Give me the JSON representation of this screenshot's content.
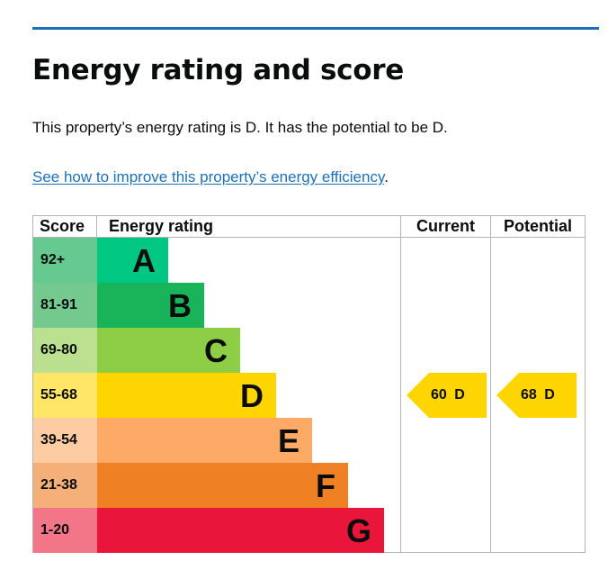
{
  "page": {
    "title": "Energy rating and score",
    "intro": "This property’s energy rating is D. It has the potential to be D.",
    "improve_link": "See how to improve this property’s energy efficiency",
    "improve_link_suffix": "."
  },
  "table": {
    "headers": {
      "score": "Score",
      "rating": "Energy rating",
      "current": "Current",
      "potential": "Potential"
    },
    "bands": [
      {
        "letter": "A",
        "score": "92+",
        "bar_color": "#00c781",
        "score_color": "#66c98f"
      },
      {
        "letter": "B",
        "score": "81-91",
        "bar_color": "#19b459",
        "score_color": "#74c98e"
      },
      {
        "letter": "C",
        "score": "69-80",
        "bar_color": "#8dce46",
        "score_color": "#bbe090"
      },
      {
        "letter": "D",
        "score": "55-68",
        "bar_color": "#ffd500",
        "score_color": "#ffe666"
      },
      {
        "letter": "E",
        "score": "39-54",
        "bar_color": "#fcaa65",
        "score_color": "#fdcca3"
      },
      {
        "letter": "F",
        "score": "21-38",
        "bar_color": "#ef8023",
        "score_color": "#f5b07a"
      },
      {
        "letter": "G",
        "score": "1-20",
        "bar_color": "#e9153b",
        "score_color": "#f27588"
      }
    ],
    "current": {
      "label": "60 D",
      "score": 60,
      "band": "D",
      "color": "#ffd500"
    },
    "potential": {
      "label": "68 D",
      "score": 68,
      "band": "D",
      "color": "#ffd500"
    }
  },
  "colors": {
    "link": "#1d70b8",
    "rule": "#1d70b8",
    "grid": "#b1b4b6"
  }
}
